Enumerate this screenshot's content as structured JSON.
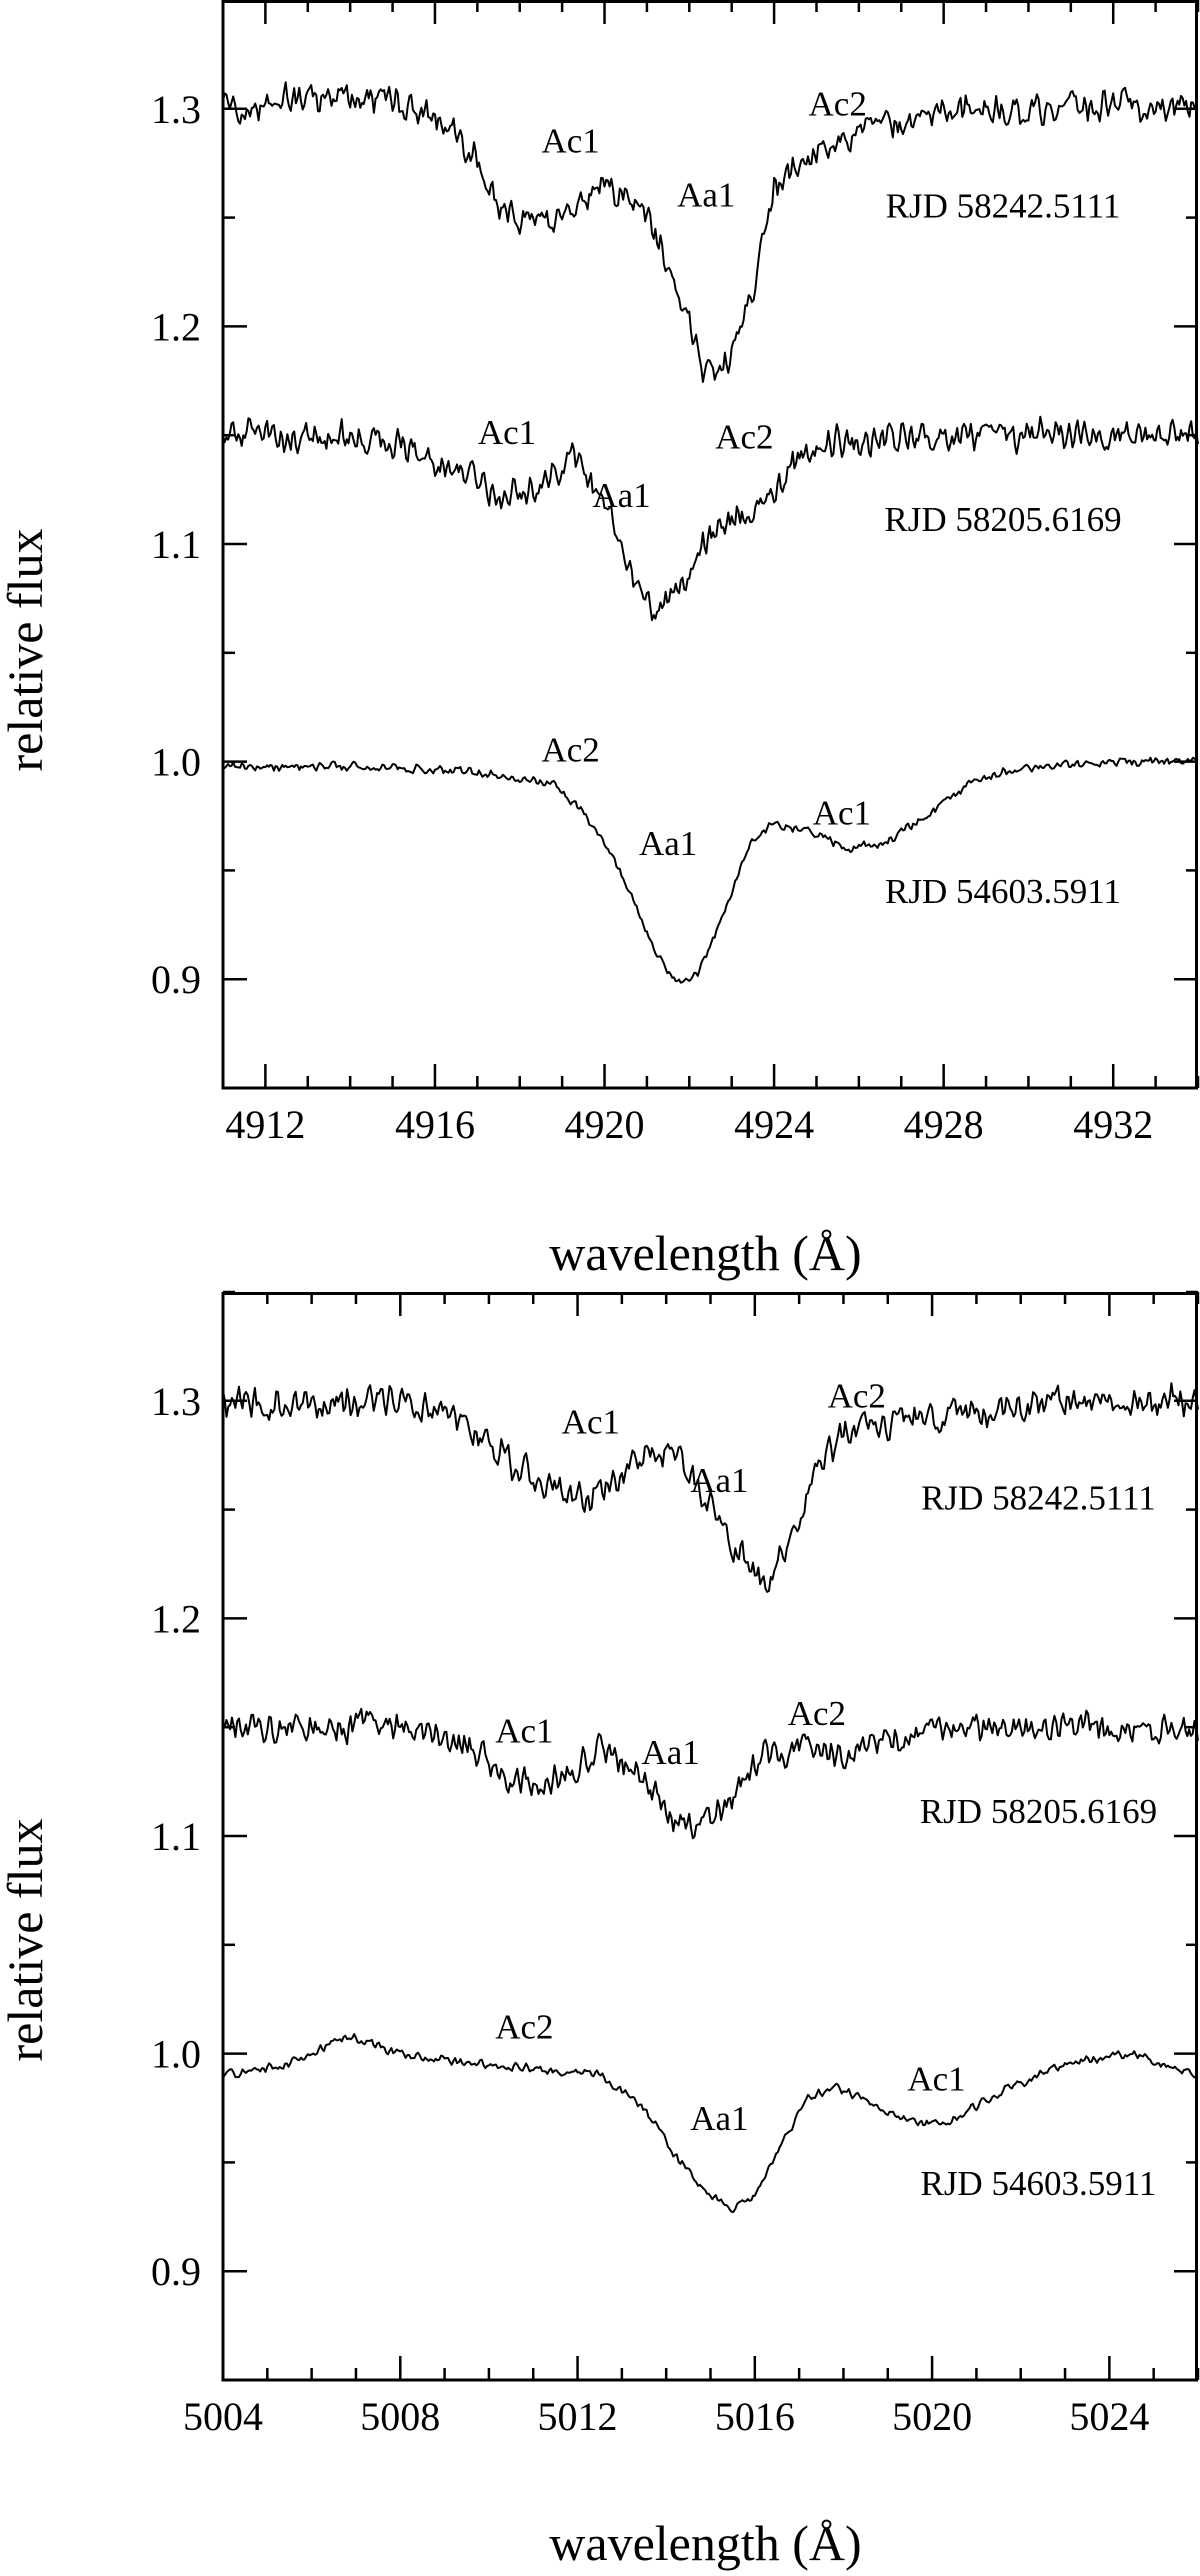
{
  "chart_data": [
    {
      "type": "line",
      "xlabel": "wavelength (Å)",
      "ylabel": "relative flux",
      "xlim": [
        4911,
        4934
      ],
      "ylim": [
        0.85,
        1.35
      ],
      "xticks": [
        4912,
        4916,
        4920,
        4924,
        4928,
        4932
      ],
      "xtick_labels": [
        "4912",
        "4916",
        "4920",
        "4924",
        "4928",
        "4932"
      ],
      "yticks": [
        0.9,
        1.0,
        1.1,
        1.2,
        1.3
      ],
      "ytick_labels": [
        "0.9",
        "1.0",
        "1.1",
        "1.2",
        "1.3"
      ],
      "series": [
        {
          "name": "RJD 58242.5111",
          "noise": 0.009,
          "x": [
            4911,
            4913,
            4915,
            4916.2,
            4917,
            4917.5,
            4918,
            4918.6,
            4919.2,
            4919.8,
            4920.5,
            4921,
            4921.6,
            4922.1,
            4922.4,
            4922.8,
            4923.2,
            4923.6,
            4924,
            4924.4,
            4925,
            4926,
            4928,
            4930,
            4932,
            4934
          ],
          "y": [
            1.3,
            1.305,
            1.305,
            1.295,
            1.275,
            1.255,
            1.25,
            1.245,
            1.255,
            1.265,
            1.262,
            1.25,
            1.225,
            1.195,
            1.178,
            1.18,
            1.195,
            1.225,
            1.262,
            1.272,
            1.28,
            1.29,
            1.297,
            1.3,
            1.302,
            1.3
          ]
        },
        {
          "name": "RJD 58205.6169",
          "noise": 0.009,
          "x": [
            4911,
            4913,
            4915,
            4916.5,
            4917.5,
            4918.5,
            4919.3,
            4920,
            4920.6,
            4921.1,
            4921.6,
            4922.2,
            4922.8,
            4923.5,
            4924.2,
            4925,
            4926,
            4928,
            4930,
            4932,
            4934
          ],
          "y": [
            1.15,
            1.15,
            1.148,
            1.135,
            1.122,
            1.128,
            1.14,
            1.118,
            1.085,
            1.068,
            1.075,
            1.095,
            1.108,
            1.115,
            1.13,
            1.145,
            1.148,
            1.15,
            1.15,
            1.15,
            1.15
          ]
        },
        {
          "name": "RJD 54603.5911",
          "noise": 0.0025,
          "x": [
            4911,
            4914,
            4917,
            4918.8,
            4919.8,
            4920.6,
            4921.2,
            4921.7,
            4922.2,
            4922.8,
            4923.4,
            4924,
            4925,
            4925.8,
            4926.6,
            4927.6,
            4928.6,
            4929.5,
            4930.5,
            4932,
            4934
          ],
          "y": [
            0.998,
            0.998,
            0.995,
            0.99,
            0.97,
            0.94,
            0.912,
            0.898,
            0.902,
            0.93,
            0.962,
            0.972,
            0.967,
            0.96,
            0.963,
            0.975,
            0.99,
            0.996,
            0.998,
            1.0,
            1.0
          ]
        }
      ],
      "annotations": [
        {
          "text": "Ac1",
          "x": 4919.2,
          "y": 1.28
        },
        {
          "text": "Aa1",
          "x": 4922.4,
          "y": 1.255
        },
        {
          "text": "Ac2",
          "x": 4925.5,
          "y": 1.297
        },
        {
          "text": "RJD 58242.5111",
          "x": 4929.4,
          "y": 1.25
        },
        {
          "text": "Ac1",
          "x": 4917.7,
          "y": 1.146
        },
        {
          "text": "Aa1",
          "x": 4920.4,
          "y": 1.117
        },
        {
          "text": "Ac2",
          "x": 4923.3,
          "y": 1.144
        },
        {
          "text": "RJD 58205.6169",
          "x": 4929.4,
          "y": 1.106
        },
        {
          "text": "Ac2",
          "x": 4919.2,
          "y": 1.0
        },
        {
          "text": "Aa1",
          "x": 4921.5,
          "y": 0.957
        },
        {
          "text": "Ac1",
          "x": 4925.6,
          "y": 0.971
        },
        {
          "text": "RJD 54603.5911",
          "x": 4929.4,
          "y": 0.935
        }
      ]
    },
    {
      "type": "line",
      "xlabel": "wavelength (Å)",
      "ylabel": "relative flux",
      "xlim": [
        5004,
        5026
      ],
      "ylim": [
        0.85,
        1.35
      ],
      "xticks": [
        5004,
        5008,
        5012,
        5016,
        5020,
        5024
      ],
      "xtick_labels": [
        "5004",
        "5008",
        "5012",
        "5016",
        "5020",
        "5024"
      ],
      "yticks": [
        0.9,
        1.0,
        1.1,
        1.2,
        1.3
      ],
      "ytick_labels": [
        "0.9",
        "1.0",
        "1.1",
        "1.2",
        "1.3"
      ],
      "series": [
        {
          "name": "RJD 58242.5111",
          "noise": 0.009,
          "x": [
            5004,
            5006,
            5008,
            5009.5,
            5010.5,
            5011.5,
            5012.3,
            5013,
            5013.6,
            5014.2,
            5014.7,
            5015.3,
            5015.8,
            5016.3,
            5016.8,
            5017.4,
            5018,
            5019,
            5021,
            5023,
            5026
          ],
          "y": [
            1.3,
            1.298,
            1.302,
            1.29,
            1.272,
            1.26,
            1.255,
            1.265,
            1.275,
            1.278,
            1.26,
            1.24,
            1.225,
            1.215,
            1.235,
            1.272,
            1.285,
            1.29,
            1.295,
            1.3,
            1.3
          ]
        },
        {
          "name": "RJD 58205.6169",
          "noise": 0.009,
          "x": [
            5004,
            5006,
            5008,
            5009.5,
            5010.3,
            5011,
            5011.8,
            5012.6,
            5013.4,
            5014,
            5014.5,
            5015,
            5015.6,
            5016.2,
            5017,
            5018,
            5019,
            5020,
            5022,
            5024,
            5026
          ],
          "y": [
            1.15,
            1.15,
            1.152,
            1.142,
            1.128,
            1.122,
            1.13,
            1.14,
            1.13,
            1.112,
            1.105,
            1.108,
            1.12,
            1.138,
            1.14,
            1.138,
            1.145,
            1.15,
            1.15,
            1.15,
            1.148
          ]
        },
        {
          "name": "RJD 54603.5911",
          "noise": 0.0025,
          "x": [
            5004,
            5005.5,
            5006.8,
            5008,
            5009.5,
            5011,
            5012.5,
            5013.5,
            5014.3,
            5015,
            5015.5,
            5016,
            5016.6,
            5017.2,
            5017.8,
            5018.6,
            5019.5,
            5020.3,
            5021.5,
            5023,
            5024.5,
            5026
          ],
          "y": [
            0.99,
            0.995,
            1.008,
            1.0,
            0.996,
            0.993,
            0.99,
            0.975,
            0.95,
            0.935,
            0.928,
            0.935,
            0.958,
            0.98,
            0.985,
            0.978,
            0.968,
            0.968,
            0.982,
            0.995,
            1.0,
            0.99
          ]
        }
      ],
      "annotations": [
        {
          "text": "Ac1",
          "x": 5012.3,
          "y": 1.285
        },
        {
          "text": "Aa1",
          "x": 5015.2,
          "y": 1.258
        },
        {
          "text": "Ac2",
          "x": 5018.3,
          "y": 1.297
        },
        {
          "text": "RJD 58242.5111",
          "x": 5022.4,
          "y": 1.25
        },
        {
          "text": "Ac1",
          "x": 5010.8,
          "y": 1.143
        },
        {
          "text": "Aa1",
          "x": 5014.1,
          "y": 1.133
        },
        {
          "text": "Ac2",
          "x": 5017.4,
          "y": 1.151
        },
        {
          "text": "RJD 58205.6169",
          "x": 5022.4,
          "y": 1.106
        },
        {
          "text": "Ac2",
          "x": 5010.8,
          "y": 1.007
        },
        {
          "text": "Aa1",
          "x": 5015.2,
          "y": 0.965
        },
        {
          "text": "Ac1",
          "x": 5020.1,
          "y": 0.983
        },
        {
          "text": "RJD 54603.5911",
          "x": 5022.4,
          "y": 0.935
        }
      ]
    }
  ]
}
